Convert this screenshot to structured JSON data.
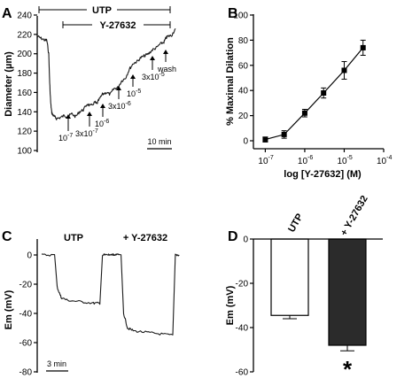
{
  "chart_data": [
    {
      "panel": "A",
      "type": "line",
      "ylabel": "Diameter (µm)",
      "ylim": [
        100,
        240
      ],
      "yticks": [
        "100",
        "120",
        "140",
        "160",
        "180",
        "200",
        "220",
        "240"
      ],
      "bars": [
        {
          "label": "UTP"
        },
        {
          "label": "Y-27632"
        }
      ],
      "annotations": [
        "10",
        "-7",
        "3x10",
        "-7",
        "10",
        "-6",
        "3x10",
        "-6",
        "10",
        "-5",
        "3x10",
        "-5",
        "wash"
      ],
      "scale_bar": "10 min",
      "trace": {
        "x_min": [
          0,
          2,
          4,
          5,
          6,
          6.5,
          7,
          7.5,
          8,
          9,
          10,
          12,
          14,
          16,
          18,
          20,
          22,
          24,
          26,
          28,
          30,
          31,
          32,
          34,
          36,
          38,
          40,
          42,
          44,
          46,
          48,
          50,
          52,
          54,
          56,
          58,
          60,
          62,
          64,
          66,
          67,
          68,
          70,
          72
        ],
        "y": [
          218,
          216,
          214,
          214,
          200,
          170,
          150,
          140,
          137,
          135,
          133,
          134,
          136,
          135,
          138,
          135,
          140,
          142,
          148,
          146,
          150,
          148,
          152,
          158,
          160,
          158,
          164,
          165,
          172,
          175,
          184,
          190,
          192,
          196,
          198,
          200,
          204,
          206,
          210,
          212,
          216,
          218,
          219,
          226
        ]
      }
    },
    {
      "panel": "B",
      "type": "line",
      "xlabel": "log [Y-27632] (M)",
      "ylabel": "% Maximal Dilation",
      "xscale": "log",
      "xlim": [
        5e-08,
        0.0001
      ],
      "ylim": [
        -5,
        100
      ],
      "xticks": [
        {
          "base": "10",
          "exp": "-7"
        },
        {
          "base": "10",
          "exp": "-6"
        },
        {
          "base": "10",
          "exp": "-5"
        },
        {
          "base": "10",
          "exp": "-4"
        }
      ],
      "yticks": [
        "0",
        "20",
        "40",
        "60",
        "80",
        "100"
      ],
      "x": [
        1e-07,
        3e-07,
        1e-06,
        3e-06,
        1e-05,
        3e-05
      ],
      "y": [
        1,
        5,
        22,
        38,
        56,
        74
      ],
      "err": [
        2,
        3,
        3,
        4,
        7,
        6
      ]
    },
    {
      "panel": "C",
      "type": "line",
      "ylabel": "Em (mV)",
      "ylim": [
        -80,
        5
      ],
      "yticks": [
        "0",
        "-20",
        "-40",
        "-60",
        "-80"
      ],
      "labels": [
        "UTP",
        "+ Y-27632"
      ],
      "scale_bar": "3 min",
      "traces": [
        {
          "t_min": [
            0,
            2,
            2.4,
            3,
            4,
            6,
            8,
            9,
            9.4,
            10,
            12
          ],
          "y": [
            0,
            0,
            -22,
            -29,
            -31,
            -32,
            -33,
            -33,
            0,
            0,
            0
          ]
        },
        {
          "t_min": [
            0,
            2,
            2.4,
            3,
            4,
            6,
            8,
            10,
            10.4,
            11
          ],
          "y": [
            0,
            0,
            -40,
            -50,
            -52,
            -53,
            -54,
            -55,
            0,
            0
          ]
        }
      ]
    },
    {
      "panel": "D",
      "type": "bar",
      "ylabel": "Em (mV)",
      "ylim": [
        -60,
        0
      ],
      "yticks": [
        "0",
        "-20",
        "-40",
        "-60"
      ],
      "categories": [
        "UTP",
        "+ Y-27632"
      ],
      "values": [
        -34.5,
        -48
      ],
      "err": [
        1.5,
        2.5
      ],
      "colors": [
        "#ffffff",
        "#2b2b2b"
      ],
      "significance": "*"
    }
  ]
}
